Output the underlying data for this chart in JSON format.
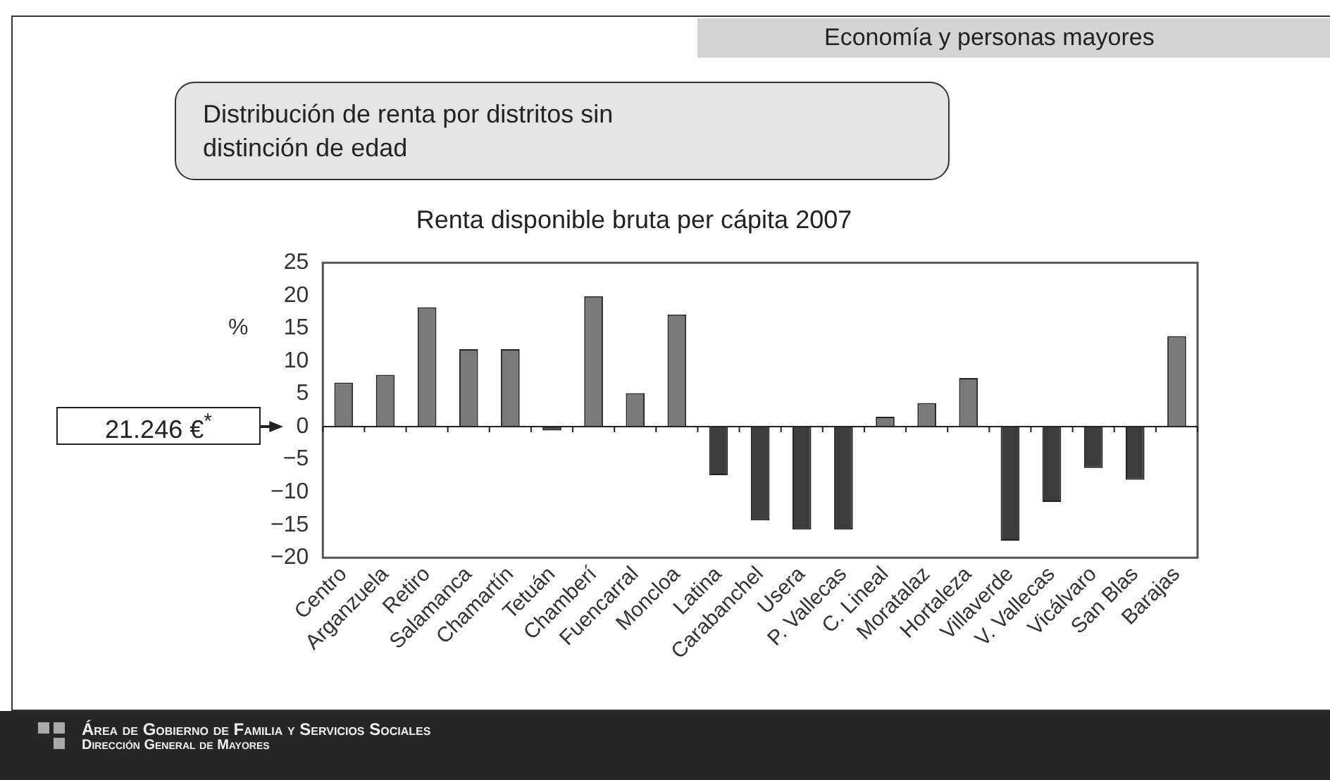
{
  "chart_data": {
    "type": "bar",
    "title": "Renta disponible bruta per cápita 2007",
    "subtitle": "Distribución de renta por distritos sin distinción de edad",
    "ylabel": "%",
    "categories": [
      "Centro",
      "Arganzuela",
      "Retiro",
      "Salamanca",
      "Chamartín",
      "Tetuán",
      "Chamberí",
      "Fuencarral",
      "Moncloa",
      "Latina",
      "Carabanchel",
      "Usera",
      "P. Vallecas",
      "C. Lineal",
      "Moratalaz",
      "Hortaleza",
      "Villaverde",
      "V. Vallecas",
      "Vicálvaro",
      "San Blas",
      "Barajas"
    ],
    "values": [
      6.7,
      7.9,
      18.2,
      11.8,
      11.8,
      -0.6,
      19.9,
      5.1,
      17.1,
      -7.4,
      -14.3,
      -15.7,
      -15.7,
      1.5,
      3.6,
      7.4,
      -17.4,
      -11.5,
      -6.3,
      -8.1,
      13.8
    ],
    "colors": [
      "#7a7a7a",
      "#7a7a7a",
      "#7a7a7a",
      "#7a7a7a",
      "#7a7a7a",
      "#3c3c3c",
      "#7a7a7a",
      "#7a7a7a",
      "#7a7a7a",
      "#3c3c3c",
      "#3c3c3c",
      "#3c3c3c",
      "#3c3c3c",
      "#7a7a7a",
      "#7a7a7a",
      "#7a7a7a",
      "#3c3c3c",
      "#3c3c3c",
      "#3c3c3c",
      "#3c3c3c",
      "#7a7a7a"
    ],
    "ylim": [
      -20,
      25
    ],
    "yticks": [
      -20,
      -15,
      -10,
      -5,
      0,
      5,
      10,
      15,
      20,
      25
    ],
    "legend": false,
    "annotations": [
      "Economía y personas mayores",
      "21.246 €$^{*}$",
      "Área de Gobierno de Familia y Servicios Sociales",
      "Dirección General de Mayores"
    ]
  }
}
